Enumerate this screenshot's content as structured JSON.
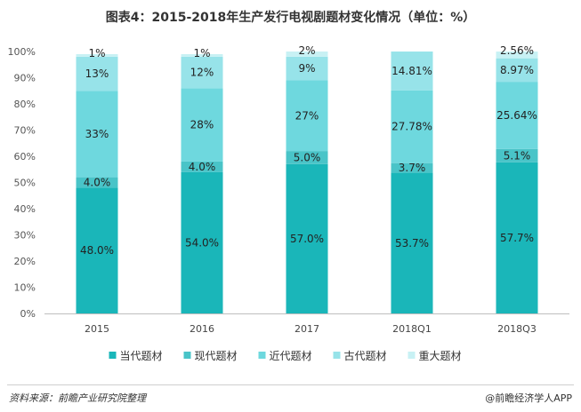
{
  "chart_data": {
    "type": "bar",
    "stacked": true,
    "title": "图表4：2015-2018年生产发行电视剧题材变化情况（单位：%）",
    "categories": [
      "2015",
      "2016",
      "2017",
      "2018Q1",
      "2018Q3"
    ],
    "ylim": [
      0,
      100
    ],
    "yticks": [
      "0%",
      "10%",
      "20%",
      "30%",
      "40%",
      "50%",
      "60%",
      "70%",
      "80%",
      "90%",
      "100%"
    ],
    "legend_position": "bottom",
    "grid": false,
    "series": [
      {
        "name": "当代题材",
        "color": "#1ab6b9",
        "values": [
          48.0,
          54.0,
          57.0,
          53.7,
          57.7
        ],
        "labels": [
          "48.0%",
          "54.0%",
          "57.0%",
          "53.7%",
          "57.7%"
        ],
        "label_color": "#ffffff"
      },
      {
        "name": "现代题材",
        "color": "#49c4c8",
        "values": [
          4.0,
          4.0,
          5.0,
          3.7,
          5.1
        ],
        "labels": [
          "4.0%",
          "4.0%",
          "5.0%",
          "3.7%",
          "5.1%"
        ],
        "label_color": "#1a1a1a"
      },
      {
        "name": "近代题材",
        "color": "#6ed8de",
        "values": [
          33,
          28,
          27,
          27.78,
          25.64
        ],
        "labels": [
          "33%",
          "28%",
          "27%",
          "27.78%",
          "25.64%"
        ],
        "label_color": "#1a1a1a"
      },
      {
        "name": "古代题材",
        "color": "#97e3e9",
        "values": [
          13,
          12,
          9,
          14.81,
          8.97
        ],
        "labels": [
          "13%",
          "12%",
          "9%",
          "14.81%",
          "8.97%"
        ],
        "label_color": "#1a1a1a"
      },
      {
        "name": "重大题材",
        "color": "#c8f1f4",
        "values": [
          1,
          1,
          2,
          0,
          2.56
        ],
        "labels": [
          "1%",
          "1%",
          "2%",
          "",
          "2.56%"
        ],
        "label_color": "#1a1a1a"
      }
    ]
  },
  "footer": {
    "source": "资料来源：前瞻产业研究院整理",
    "copyright": "@前瞻经济学人APP"
  }
}
